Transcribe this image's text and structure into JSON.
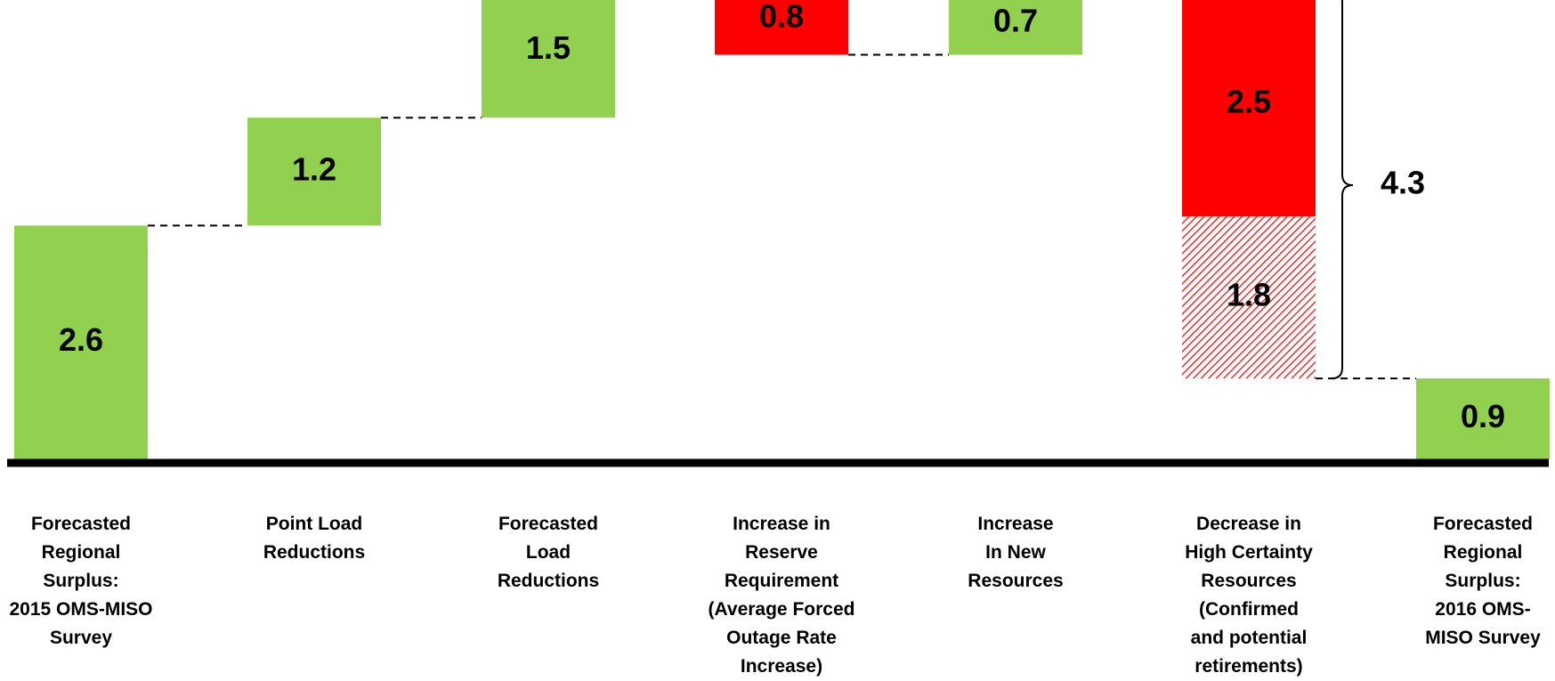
{
  "chart_data": {
    "type": "waterfall",
    "ylim": [
      0,
      5.1
    ],
    "colors": {
      "increase": "#92d050",
      "decrease": "#ff0000",
      "total": "#92d050"
    },
    "bars": [
      {
        "label": "Forecasted\nRegional Surplus:\n2015 OMS-MISO\nSurvey",
        "kind": "total",
        "start": 0,
        "end": 2.6,
        "value_label": "2.6"
      },
      {
        "label": "Point Load\nReductions",
        "kind": "increase",
        "start": 2.6,
        "end": 3.8,
        "value_label": "1.2"
      },
      {
        "label": "Forecasted\nLoad\nReductions",
        "kind": "increase",
        "start": 3.8,
        "end": 5.3,
        "value_label": "1.5"
      },
      {
        "label": "Increase in\nReserve\nRequirement\n(Average Forced\nOutage Rate\nIncrease)",
        "kind": "decrease",
        "start": 5.3,
        "end": 4.5,
        "value_label": "0.8"
      },
      {
        "label": "Increase\nIn New\nResources",
        "kind": "increase",
        "start": 4.5,
        "end": 5.2,
        "value_label": "0.7"
      },
      {
        "label": "Decrease in\nHigh Certainty\nResources\n(Confirmed\nand potential\nretirements)",
        "kind": "decrease",
        "segments": [
          {
            "start": 5.2,
            "end": 2.7,
            "value_label": "2.5",
            "style": "solid"
          },
          {
            "start": 2.7,
            "end": 0.9,
            "value_label": "1.8",
            "style": "hatched"
          }
        ],
        "bracket_label": "4.3"
      },
      {
        "label": "Forecasted\nRegional\nSurplus:\n2016 OMS-\nMISO Survey",
        "kind": "total",
        "start": 0,
        "end": 0.9,
        "value_label": "0.9"
      }
    ]
  }
}
